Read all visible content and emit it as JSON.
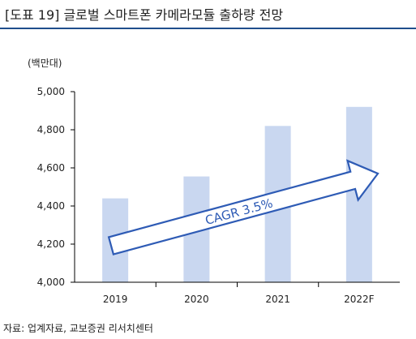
{
  "header": {
    "title": "[도표 19] 글로벌 스마트폰 카메라모듈 출하량 전망"
  },
  "chart_data": {
    "type": "bar",
    "unit": "(백만대)",
    "categories": [
      "2019",
      "2020",
      "2021",
      "2022F"
    ],
    "values": [
      4440,
      4555,
      4820,
      4920
    ],
    "ylim": [
      4000,
      5000
    ],
    "yticks": [
      4000,
      4200,
      4400,
      4600,
      4800,
      5000
    ],
    "ytick_labels": [
      "4,000",
      "4,200",
      "4,400",
      "4,600",
      "4,800",
      "5,000"
    ],
    "grid": false,
    "bar_color": "#c9d7f0",
    "annotation": {
      "text": "CAGR 3.5%",
      "type": "arrow"
    }
  },
  "footer": {
    "source": "자료: 업계자료, 교보증권 리서치센터"
  }
}
